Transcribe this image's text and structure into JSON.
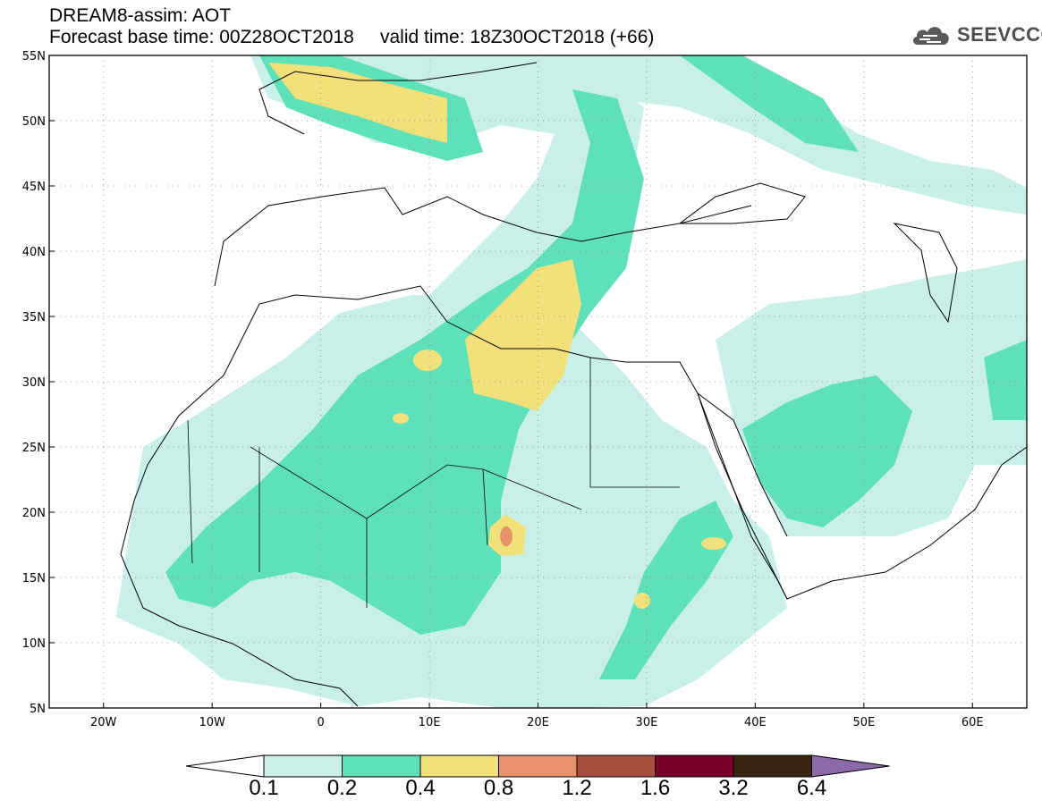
{
  "header": {
    "title": "DREAM8-assim: AOT",
    "subtitle": "Forecast base time: 00Z28OCT2018     valid time: 18Z30OCT2018 (+66)"
  },
  "logo": {
    "text": "SEEVCCC",
    "icon": "cloud-icon"
  },
  "map": {
    "lon_range": [
      -25,
      65
    ],
    "lat_range": [
      5,
      55
    ],
    "lon_ticks": [
      "20W",
      "10W",
      "0",
      "10E",
      "20E",
      "30E",
      "40E",
      "50E",
      "60E"
    ],
    "lat_ticks": [
      "55N",
      "50N",
      "45N",
      "40N",
      "35N",
      "30N",
      "25N",
      "20N",
      "15N",
      "10N",
      "5N"
    ],
    "grid": "dotted"
  },
  "colorbar": {
    "labels": [
      "0.1",
      "0.2",
      "0.4",
      "0.8",
      "1.2",
      "1.6",
      "3.2",
      "6.4"
    ],
    "colors": [
      "#ffffff",
      "#c8f0e8",
      "#5ee0b8",
      "#f2e17a",
      "#e8926a",
      "#a85040",
      "#7a0028",
      "#3a2412",
      "#8a6aa8"
    ]
  },
  "colors": {
    "c1": "#c8f0e8",
    "c2": "#5ee0b8",
    "c3": "#f2e17a",
    "c4": "#e8926a"
  }
}
